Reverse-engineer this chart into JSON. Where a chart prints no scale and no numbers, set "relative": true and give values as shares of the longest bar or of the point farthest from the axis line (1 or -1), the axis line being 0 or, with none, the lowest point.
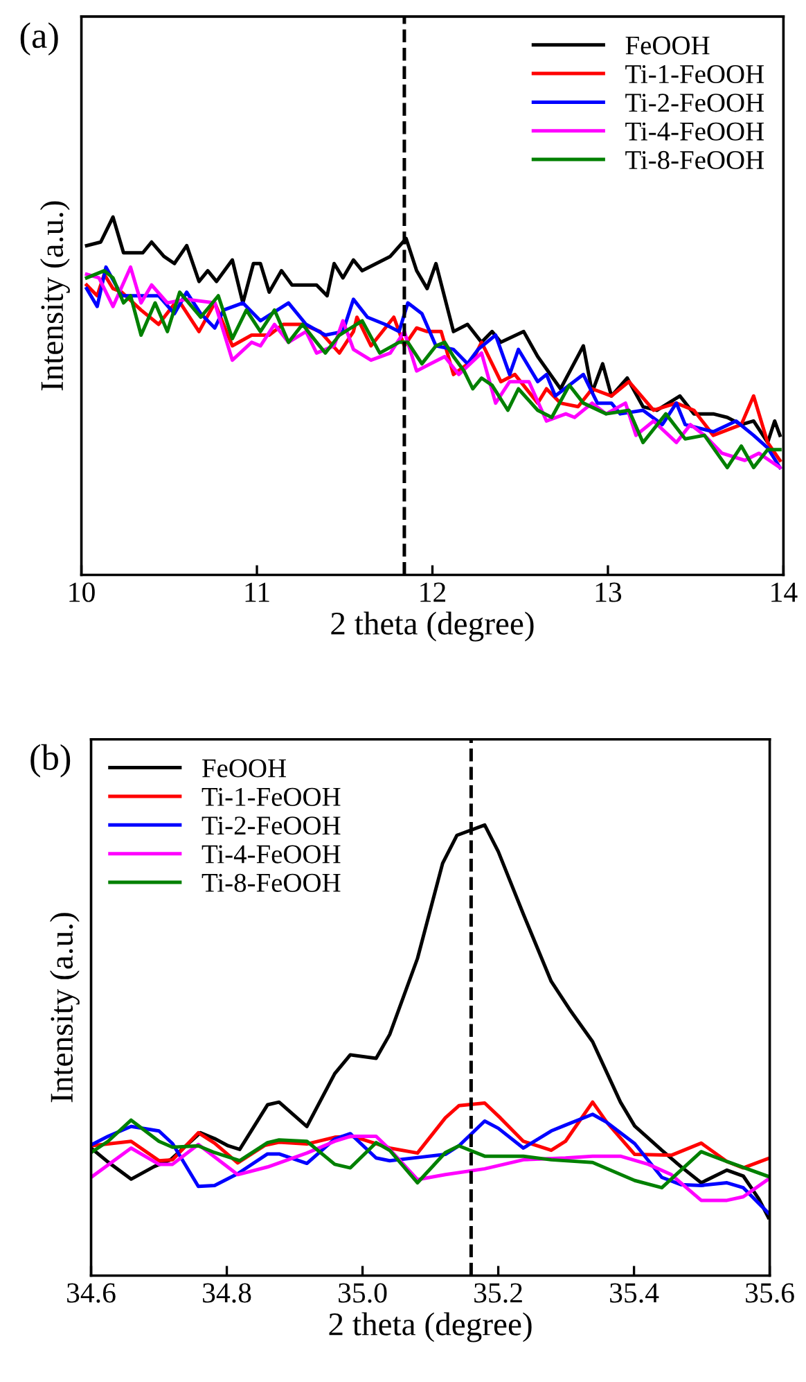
{
  "chart_data": [
    {
      "type": "line",
      "title": "(a)",
      "xlabel": "2 theta (degree)",
      "ylabel": "Intensity (a.u.)",
      "relative": true,
      "tick_labels": "x",
      "legend": "top right",
      "grid": false,
      "line_style": "solid",
      "xlim": [
        10,
        14
      ],
      "xticks": [
        10,
        11,
        12,
        13,
        14
      ],
      "ref_lines": [
        {
          "axis": "x",
          "value": 11.84,
          "line_style": "dashed",
          "color": "#000000"
        }
      ],
      "series": [
        {
          "name": "FeOOH",
          "color": "#000000",
          "x": [
            10.03,
            10.11,
            10.18,
            10.24,
            10.35,
            10.4,
            10.47,
            10.53,
            10.6,
            10.67,
            10.72,
            10.77,
            10.86,
            10.92,
            10.98,
            11.02,
            11.07,
            11.14,
            11.2,
            11.34,
            11.4,
            11.44,
            11.49,
            11.55,
            11.6,
            11.68,
            11.76,
            11.85,
            11.91,
            11.97,
            12.02,
            12.12,
            12.2,
            12.28,
            12.34,
            12.39,
            12.52,
            12.6,
            12.73,
            12.86,
            12.91,
            12.97,
            13.02,
            13.11,
            13.2,
            13.28,
            13.41,
            13.49,
            13.6,
            13.68,
            13.76,
            13.83,
            13.91,
            13.95,
            13.98
          ],
          "values": [
            0.92,
            0.93,
            1.0,
            0.9,
            0.9,
            0.93,
            0.89,
            0.87,
            0.92,
            0.82,
            0.85,
            0.82,
            0.88,
            0.76,
            0.87,
            0.87,
            0.79,
            0.85,
            0.81,
            0.81,
            0.78,
            0.87,
            0.83,
            0.88,
            0.85,
            0.87,
            0.89,
            0.94,
            0.85,
            0.8,
            0.87,
            0.68,
            0.7,
            0.65,
            0.68,
            0.65,
            0.68,
            0.61,
            0.52,
            0.64,
            0.51,
            0.59,
            0.5,
            0.55,
            0.47,
            0.46,
            0.5,
            0.45,
            0.45,
            0.44,
            0.42,
            0.43,
            0.37,
            0.43,
            0.39
          ]
        },
        {
          "name": "Ti-1-FeOOH",
          "color": "#ff0000",
          "x": [
            10.03,
            10.09,
            10.13,
            10.18,
            10.23,
            10.34,
            10.44,
            10.55,
            10.67,
            10.76,
            10.86,
            10.97,
            11.07,
            11.15,
            11.26,
            11.36,
            11.47,
            11.55,
            11.57,
            11.65,
            11.78,
            11.84,
            11.91,
            11.97,
            12.05,
            12.12,
            12.23,
            12.28,
            12.39,
            12.47,
            12.6,
            12.65,
            12.73,
            12.83,
            12.91,
            13.02,
            13.12,
            13.26,
            13.39,
            13.49,
            13.6,
            13.76,
            13.83,
            13.91,
            13.98
          ],
          "values": [
            0.81,
            0.78,
            0.84,
            0.8,
            0.79,
            0.74,
            0.7,
            0.77,
            0.68,
            0.76,
            0.64,
            0.67,
            0.67,
            0.7,
            0.7,
            0.68,
            0.62,
            0.68,
            0.72,
            0.64,
            0.72,
            0.64,
            0.69,
            0.68,
            0.68,
            0.56,
            0.6,
            0.65,
            0.54,
            0.56,
            0.48,
            0.52,
            0.48,
            0.47,
            0.52,
            0.5,
            0.54,
            0.46,
            0.48,
            0.46,
            0.39,
            0.42,
            0.5,
            0.37,
            0.32
          ]
        },
        {
          "name": "Ti-2-FeOOH",
          "color": "#0000ff",
          "x": [
            10.03,
            10.09,
            10.14,
            10.23,
            10.44,
            10.53,
            10.6,
            10.68,
            10.76,
            10.81,
            10.92,
            11.02,
            11.18,
            11.28,
            11.39,
            11.49,
            11.55,
            11.63,
            11.73,
            11.81,
            11.86,
            11.94,
            12.02,
            12.12,
            12.2,
            12.26,
            12.36,
            12.44,
            12.49,
            12.6,
            12.65,
            12.7,
            12.86,
            12.94,
            13.02,
            13.07,
            13.2,
            13.31,
            13.39,
            13.44,
            13.6,
            13.73,
            13.83,
            13.91,
            13.98
          ],
          "values": [
            0.8,
            0.75,
            0.86,
            0.78,
            0.78,
            0.73,
            0.79,
            0.73,
            0.69,
            0.74,
            0.76,
            0.71,
            0.76,
            0.7,
            0.67,
            0.68,
            0.77,
            0.72,
            0.7,
            0.68,
            0.76,
            0.73,
            0.64,
            0.63,
            0.59,
            0.63,
            0.67,
            0.56,
            0.63,
            0.54,
            0.56,
            0.5,
            0.56,
            0.48,
            0.48,
            0.45,
            0.46,
            0.42,
            0.48,
            0.42,
            0.4,
            0.43,
            0.39,
            0.355,
            0.3
          ]
        },
        {
          "name": "Ti-4-FeOOH",
          "color": "#ff00ff",
          "x": [
            10.03,
            10.1,
            10.18,
            10.28,
            10.34,
            10.4,
            10.49,
            10.6,
            10.76,
            10.86,
            10.97,
            11.02,
            11.1,
            11.18,
            11.28,
            11.34,
            11.44,
            11.49,
            11.55,
            11.65,
            11.76,
            11.84,
            11.91,
            11.99,
            12.07,
            12.15,
            12.28,
            12.36,
            12.44,
            12.55,
            12.65,
            12.76,
            12.81,
            12.91,
            12.99,
            13.1,
            13.16,
            13.26,
            13.39,
            13.47,
            13.55,
            13.65,
            13.78,
            13.86,
            13.98
          ],
          "values": [
            0.84,
            0.83,
            0.75,
            0.86,
            0.76,
            0.81,
            0.76,
            0.77,
            0.76,
            0.6,
            0.65,
            0.64,
            0.7,
            0.65,
            0.68,
            0.62,
            0.64,
            0.71,
            0.63,
            0.6,
            0.62,
            0.68,
            0.57,
            0.59,
            0.61,
            0.56,
            0.62,
            0.48,
            0.54,
            0.54,
            0.43,
            0.45,
            0.44,
            0.48,
            0.45,
            0.48,
            0.39,
            0.43,
            0.37,
            0.42,
            0.39,
            0.34,
            0.32,
            0.34,
            0.3
          ]
        },
        {
          "name": "Ti-8-FeOOH",
          "color": "#008000",
          "x": [
            10.03,
            10.13,
            10.18,
            10.24,
            10.28,
            10.34,
            10.42,
            10.49,
            10.56,
            10.68,
            10.78,
            10.86,
            10.94,
            11.02,
            11.1,
            11.18,
            11.26,
            11.34,
            11.39,
            11.47,
            11.6,
            11.7,
            11.81,
            11.86,
            11.94,
            12.02,
            12.07,
            12.12,
            12.18,
            12.23,
            12.28,
            12.34,
            12.43,
            12.49,
            12.6,
            12.68,
            12.78,
            12.86,
            12.99,
            13.12,
            13.2,
            13.33,
            13.44,
            13.55,
            13.68,
            13.76,
            13.83,
            13.91,
            13.98
          ],
          "values": [
            0.83,
            0.85,
            0.83,
            0.76,
            0.78,
            0.67,
            0.76,
            0.68,
            0.79,
            0.72,
            0.78,
            0.66,
            0.74,
            0.68,
            0.74,
            0.65,
            0.7,
            0.65,
            0.62,
            0.67,
            0.71,
            0.62,
            0.65,
            0.65,
            0.59,
            0.64,
            0.65,
            0.61,
            0.57,
            0.52,
            0.55,
            0.53,
            0.46,
            0.52,
            0.46,
            0.44,
            0.53,
            0.48,
            0.45,
            0.46,
            0.37,
            0.45,
            0.38,
            0.39,
            0.3,
            0.36,
            0.3,
            0.35,
            0.35
          ]
        }
      ]
    },
    {
      "type": "line",
      "title": "(b)",
      "xlabel": "2 theta (degree)",
      "ylabel": "Intensity (a.u.)",
      "relative": true,
      "tick_labels": "x",
      "legend": "top left",
      "grid": false,
      "line_style": "solid",
      "xlim": [
        34.6,
        35.6
      ],
      "xticks": [
        34.6,
        34.8,
        {
          "value": 35.0,
          "label": "35.0"
        },
        35.2,
        35.4,
        35.6
      ],
      "ref_lines": [
        {
          "axis": "x",
          "value": 35.16,
          "line_style": "dashed",
          "color": "#000000"
        }
      ],
      "series": [
        {
          "name": "FeOOH",
          "color": "#000000",
          "x": [
            34.6,
            34.625,
            34.659,
            34.693,
            34.717,
            34.761,
            34.782,
            34.802,
            34.819,
            34.86,
            34.877,
            34.918,
            34.959,
            34.982,
            35.02,
            35.04,
            35.081,
            35.118,
            35.139,
            35.18,
            35.2,
            35.237,
            35.278,
            35.305,
            35.339,
            35.38,
            35.401,
            35.441,
            35.469,
            35.499,
            35.537,
            35.561,
            35.584,
            35.598
          ],
          "values": [
            0.283,
            0.252,
            0.214,
            0.242,
            0.257,
            0.317,
            0.304,
            0.288,
            0.28,
            0.379,
            0.385,
            0.331,
            0.448,
            0.49,
            0.482,
            0.535,
            0.704,
            0.915,
            0.977,
            1.0,
            0.941,
            0.802,
            0.653,
            0.591,
            0.519,
            0.385,
            0.332,
            0.278,
            0.242,
            0.206,
            0.234,
            0.221,
            0.17,
            0.129
          ]
        },
        {
          "name": "Ti-1-FeOOH",
          "color": "#ff0000",
          "x": [
            34.6,
            34.659,
            34.7,
            34.72,
            34.758,
            34.782,
            34.816,
            34.856,
            34.877,
            34.918,
            34.959,
            34.986,
            35.04,
            35.081,
            35.122,
            35.142,
            35.18,
            35.203,
            35.237,
            35.278,
            35.299,
            35.339,
            35.36,
            35.401,
            35.455,
            35.499,
            35.537,
            35.561,
            35.598
          ],
          "values": [
            0.288,
            0.298,
            0.255,
            0.257,
            0.317,
            0.294,
            0.25,
            0.289,
            0.296,
            0.292,
            0.307,
            0.309,
            0.283,
            0.272,
            0.35,
            0.377,
            0.383,
            0.35,
            0.298,
            0.278,
            0.298,
            0.385,
            0.34,
            0.269,
            0.267,
            0.294,
            0.253,
            0.239,
            0.26
          ]
        },
        {
          "name": "Ti-2-FeOOH",
          "color": "#0000ff",
          "x": [
            34.6,
            34.625,
            34.659,
            34.7,
            34.72,
            34.758,
            34.782,
            34.816,
            34.86,
            34.877,
            34.918,
            34.959,
            34.982,
            35.02,
            35.04,
            35.081,
            35.122,
            35.142,
            35.18,
            35.2,
            35.237,
            35.278,
            35.299,
            35.339,
            35.36,
            35.401,
            35.441,
            35.469,
            35.499,
            35.537,
            35.561,
            35.598
          ],
          "values": [
            0.29,
            0.309,
            0.331,
            0.321,
            0.293,
            0.198,
            0.2,
            0.226,
            0.27,
            0.27,
            0.249,
            0.303,
            0.315,
            0.261,
            0.255,
            0.262,
            0.269,
            0.288,
            0.343,
            0.327,
            0.283,
            0.321,
            0.334,
            0.358,
            0.34,
            0.293,
            0.218,
            0.202,
            0.2,
            0.206,
            0.195,
            0.139
          ]
        },
        {
          "name": "Ti-4-FeOOH",
          "color": "#ff00ff",
          "x": [
            34.6,
            34.659,
            34.7,
            34.72,
            34.758,
            34.816,
            34.86,
            34.918,
            34.959,
            34.982,
            35.02,
            35.04,
            35.081,
            35.122,
            35.18,
            35.237,
            35.299,
            35.339,
            35.38,
            35.421,
            35.455,
            35.499,
            35.537,
            35.561,
            35.598
          ],
          "values": [
            0.218,
            0.283,
            0.247,
            0.247,
            0.291,
            0.224,
            0.241,
            0.272,
            0.298,
            0.309,
            0.309,
            0.28,
            0.213,
            0.224,
            0.237,
            0.257,
            0.261,
            0.265,
            0.265,
            0.247,
            0.224,
            0.167,
            0.167,
            0.175,
            0.214
          ]
        },
        {
          "name": "Ti-8-FeOOH",
          "color": "#008000",
          "x": [
            34.6,
            34.625,
            34.659,
            34.7,
            34.72,
            34.758,
            34.782,
            34.819,
            34.86,
            34.877,
            34.918,
            34.959,
            34.982,
            35.02,
            35.04,
            35.081,
            35.122,
            35.142,
            35.18,
            35.2,
            35.237,
            35.278,
            35.339,
            35.401,
            35.441,
            35.499,
            35.537,
            35.598
          ],
          "values": [
            0.273,
            0.298,
            0.345,
            0.298,
            0.285,
            0.288,
            0.273,
            0.255,
            0.295,
            0.301,
            0.298,
            0.247,
            0.239,
            0.295,
            0.278,
            0.206,
            0.273,
            0.288,
            0.265,
            0.265,
            0.265,
            0.257,
            0.251,
            0.211,
            0.195,
            0.275,
            0.253,
            0.22
          ]
        }
      ]
    }
  ]
}
